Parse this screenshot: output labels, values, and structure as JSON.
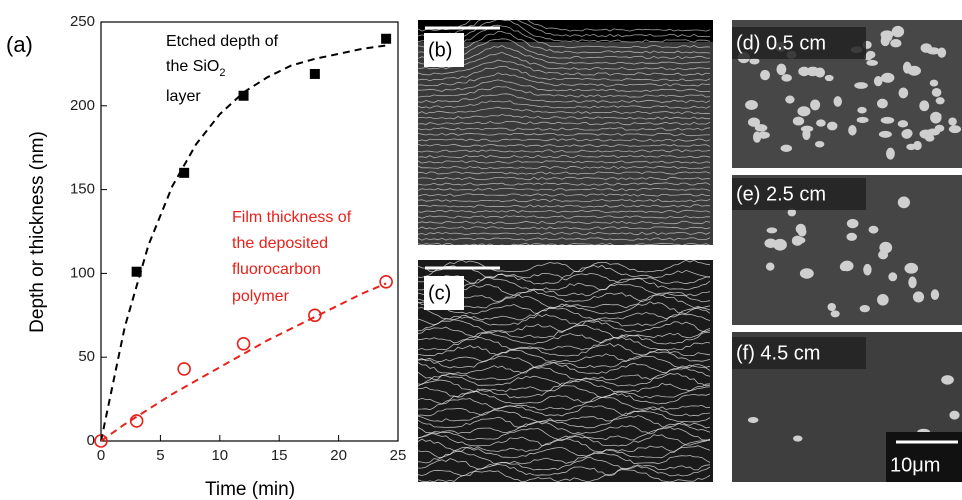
{
  "chart_data": {
    "type": "scatter",
    "panel_label": "(a)",
    "x_label": "Time (min)",
    "y_label": "Depth or thickness (nm)",
    "xlim": [
      0,
      25
    ],
    "xticks": [
      0,
      5,
      10,
      15,
      20,
      25
    ],
    "ylim": [
      0,
      250
    ],
    "yticks": [
      0,
      50,
      100,
      150,
      200,
      250
    ],
    "series": [
      {
        "color": "#000000",
        "marker": "square",
        "x": [
          3,
          7,
          12,
          18,
          24
        ],
        "values": [
          101,
          160,
          206,
          219,
          240
        ]
      },
      {
        "color": "#e8211b",
        "marker": "circle",
        "x": [
          0,
          3,
          7,
          12,
          18,
          24
        ],
        "values": [
          0,
          12,
          43,
          58,
          75,
          95
        ]
      },
      {
        "color": "#000000",
        "marker": "dashed",
        "x": [
          0,
          2,
          4,
          6,
          8,
          10,
          12,
          14,
          16,
          18,
          20,
          22,
          24
        ],
        "values": [
          0,
          68,
          117,
          152,
          177,
          195,
          208,
          217,
          224,
          228,
          231,
          234,
          236
        ]
      },
      {
        "color": "#e8211b",
        "marker": "dashed",
        "x": [
          0,
          2,
          4,
          6,
          8,
          10,
          12,
          14,
          16,
          18,
          20,
          22,
          24
        ],
        "values": [
          0,
          10,
          19,
          28,
          36,
          44,
          52,
          60,
          67,
          74,
          81,
          88,
          94
        ]
      }
    ],
    "annotations": [
      {
        "lines": [
          "Etched depth of",
          "the SiO",
          "2",
          "layer"
        ],
        "color": "#000000"
      },
      {
        "lines": [
          "Film thickness of",
          "the deposited",
          "fluorocarbon",
          "polymer"
        ],
        "color": "#e8211b"
      }
    ]
  },
  "panels": [
    {
      "label": "(b)"
    },
    {
      "label": "(c)"
    },
    {
      "label": "(d) 0.5 cm"
    },
    {
      "label": "(e) 2.5 cm"
    },
    {
      "label": "(f) 4.5 cm"
    }
  ],
  "scale_bar": "10μm"
}
